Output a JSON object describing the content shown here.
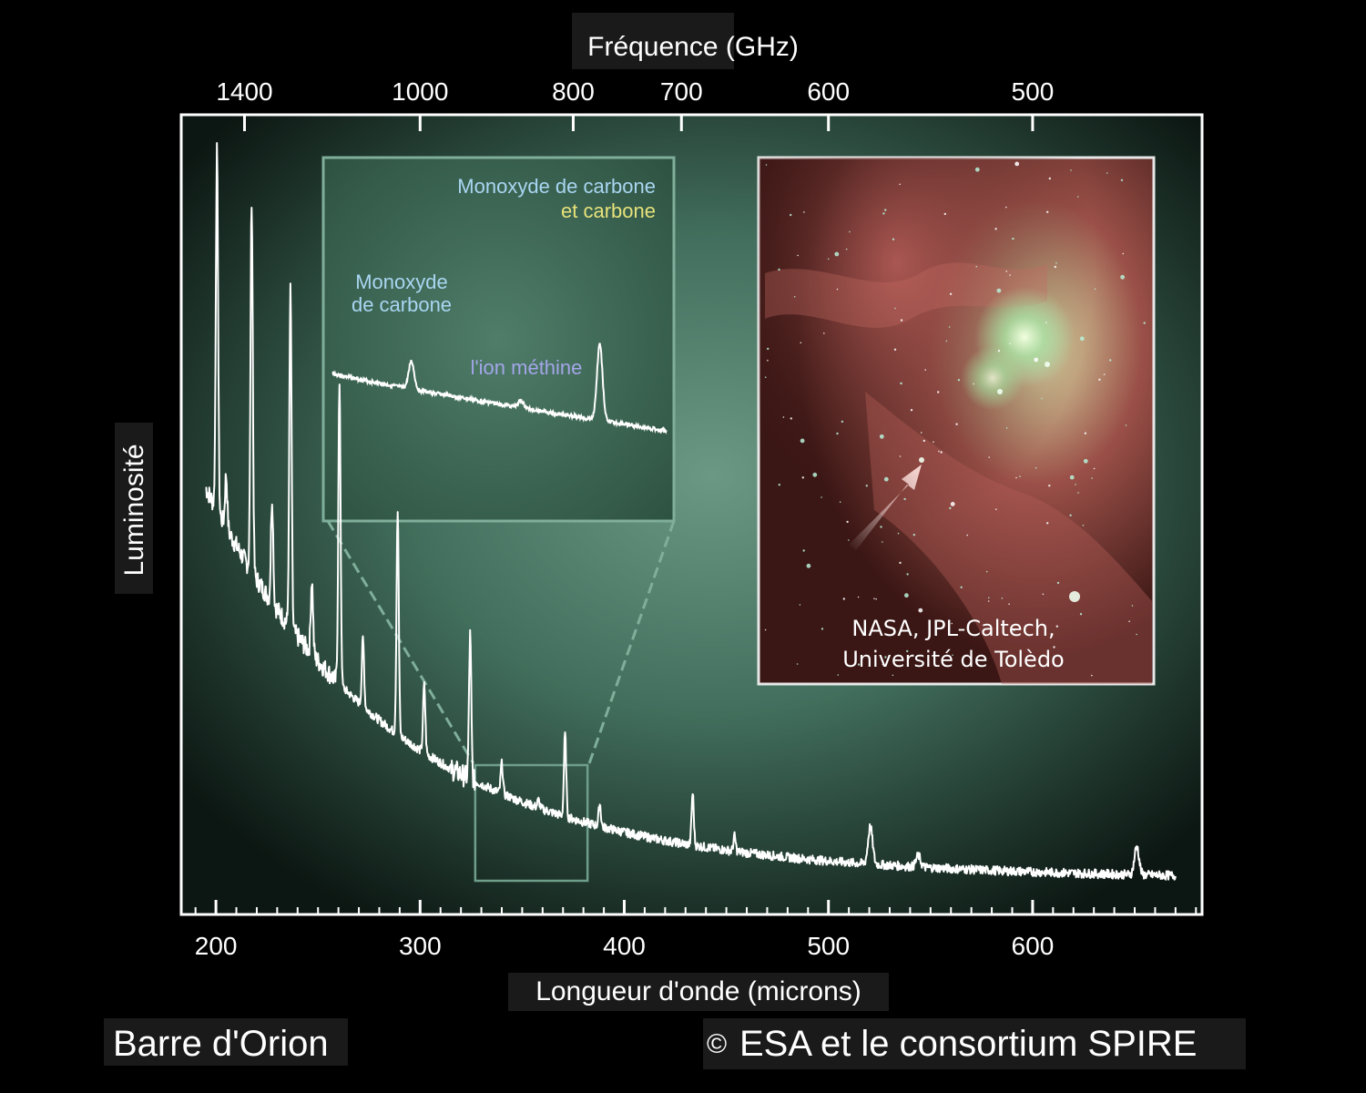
{
  "chart_data": {
    "type": "line",
    "top_axis": {
      "label": "Fréquence (GHz)",
      "ticks": [
        {
          "label": "1400",
          "wavelength": 214
        },
        {
          "label": "1000",
          "wavelength": 300
        },
        {
          "label": "800",
          "wavelength": 375
        },
        {
          "label": "700",
          "wavelength": 428
        },
        {
          "label": "600",
          "wavelength": 500
        },
        {
          "label": "500",
          "wavelength": 600
        }
      ]
    },
    "x_axis": {
      "label": "Longueur d'onde (microns)",
      "ticks": [
        "200",
        "300",
        "400",
        "500",
        "600"
      ],
      "tick_values": [
        200,
        300,
        400,
        500,
        600
      ],
      "range": [
        183,
        683
      ]
    },
    "y_axis": {
      "label": "Luminosité",
      "range": [
        0,
        1
      ],
      "unit": "relative"
    },
    "grid": false,
    "series": [
      {
        "color": "#ffffff",
        "continuum": {
          "from_x": 195,
          "to_x": 670,
          "start": 0.53,
          "knee": 0.06,
          "end": 0.02
        },
        "peaks": [
          {
            "x": 200.5,
            "height": 0.48
          },
          {
            "x": 205,
            "height": 0.07
          },
          {
            "x": 217.5,
            "height": 0.5
          },
          {
            "x": 227.5,
            "height": 0.14
          },
          {
            "x": 236.5,
            "height": 0.45
          },
          {
            "x": 247,
            "height": 0.1
          },
          {
            "x": 260.5,
            "height": 0.4
          },
          {
            "x": 272,
            "height": 0.09
          },
          {
            "x": 289,
            "height": 0.3
          },
          {
            "x": 302,
            "height": 0.09
          },
          {
            "x": 324.5,
            "height": 0.19
          },
          {
            "x": 340,
            "height": 0.04
          },
          {
            "x": 358,
            "height": 0.01
          },
          {
            "x": 371,
            "height": 0.11
          },
          {
            "x": 388,
            "height": 0.03
          },
          {
            "x": 433.5,
            "height": 0.07
          },
          {
            "x": 454,
            "height": 0.02
          },
          {
            "x": 520.5,
            "height": 0.05
          },
          {
            "x": 544,
            "height": 0.015
          },
          {
            "x": 651,
            "height": 0.038
          }
        ]
      }
    ],
    "inset": {
      "zoom_range": [
        327,
        382
      ],
      "annotations": [
        {
          "lines": [
            "Monoxyde de carbone"
          ],
          "color": "#a9d6f2"
        },
        {
          "lines": [
            "et carbone"
          ],
          "color": "#e6e27a"
        },
        {
          "lines": [
            "Monoxyde",
            "de carbone"
          ],
          "color": "#a9d6f2"
        },
        {
          "lines": [
            "l'ion méthine"
          ],
          "color": "#a3a6e8"
        }
      ]
    }
  },
  "photo": {
    "credit_lines": [
      "NASA, JPL-Caltech,",
      "Université de Tolèdo"
    ],
    "subject": "Orion nebula infrared image"
  },
  "footer": {
    "left": "Barre d'Orion",
    "right_symbol": "©",
    "right": "ESA et le consortium SPIRE"
  },
  "colors": {
    "background": "#000000",
    "plot_center": "#5e8a78",
    "plot_edge": "#0c1612",
    "line": "#ffffff",
    "inset_border": "#7fae9a"
  }
}
